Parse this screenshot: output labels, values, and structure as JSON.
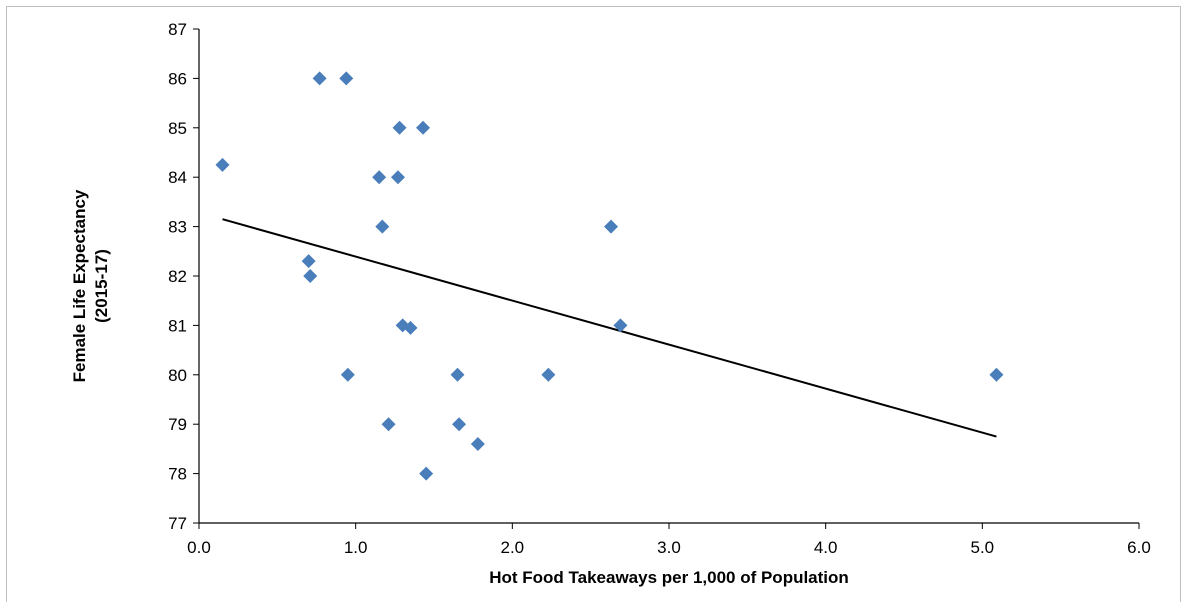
{
  "chart_data": {
    "type": "scatter",
    "title": "",
    "xlabel": "Hot Food Takeaways per 1,000 of Population",
    "ylabel_lines": [
      "Female Life Expectancy",
      "(2015-17)"
    ],
    "xlim": [
      0,
      6
    ],
    "ylim": [
      77,
      87
    ],
    "xticks": [
      "0.0",
      "1.0",
      "2.0",
      "3.0",
      "4.0",
      "5.0",
      "6.0"
    ],
    "yticks": [
      "77",
      "78",
      "79",
      "80",
      "81",
      "82",
      "83",
      "84",
      "85",
      "86",
      "87"
    ],
    "grid": false,
    "legend": "none",
    "series": [
      {
        "points": [
          [
            0.15,
            84.25
          ],
          [
            0.7,
            82.3
          ],
          [
            0.71,
            82.0
          ],
          [
            0.77,
            86.0
          ],
          [
            0.94,
            86.0
          ],
          [
            0.95,
            80.0
          ],
          [
            1.15,
            84.0
          ],
          [
            1.17,
            83.0
          ],
          [
            1.21,
            79.0
          ],
          [
            1.27,
            84.0
          ],
          [
            1.28,
            85.0
          ],
          [
            1.3,
            81.0
          ],
          [
            1.35,
            80.95
          ],
          [
            1.43,
            85.0
          ],
          [
            1.45,
            78.0
          ],
          [
            1.65,
            80.0
          ],
          [
            1.66,
            79.0
          ],
          [
            1.78,
            78.6
          ],
          [
            2.23,
            80.0
          ],
          [
            2.63,
            83.0
          ],
          [
            2.69,
            81.0
          ],
          [
            5.09,
            80.0
          ]
        ]
      }
    ],
    "trendline": {
      "x": [
        0.15,
        5.09
      ],
      "y": [
        83.15,
        78.75
      ]
    },
    "colors": {
      "marker": "#4a7ebb",
      "trendline": "#000000",
      "axis": "#000000"
    }
  }
}
